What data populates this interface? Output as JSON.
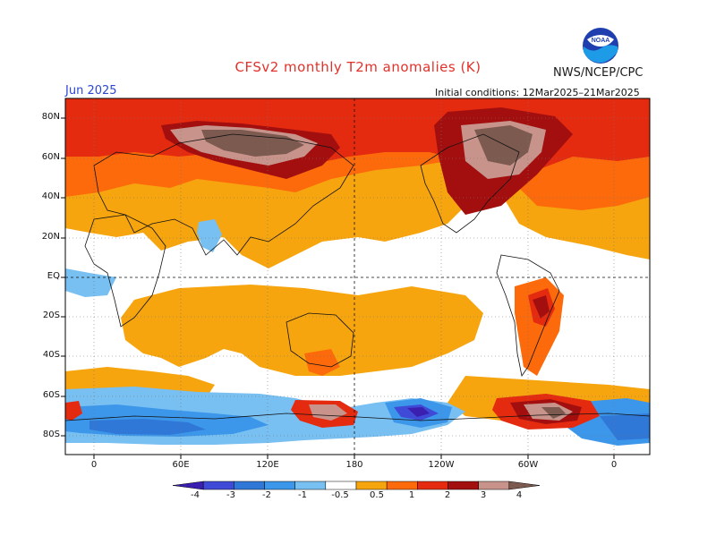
{
  "header": {
    "title": "CFSv2 monthly T2m anomalies (K)",
    "agency": "NWS/NCEP/CPC",
    "month": "Jun 2025",
    "initial_conditions": "Initial conditions: 12Mar2025–21Mar2025"
  },
  "logo_icon": "noaa-logo-icon",
  "axes": {
    "lat_labels": [
      "80N",
      "60N",
      "40N",
      "20N",
      "EQ",
      "20S",
      "40S",
      "60S",
      "80S"
    ],
    "lon_labels": [
      "0",
      "60E",
      "120E",
      "180",
      "120W",
      "60W",
      "0"
    ]
  },
  "colorbar": {
    "labels": [
      "-4",
      "-3",
      "-2",
      "-1",
      "-0.5",
      "0.5",
      "1",
      "2",
      "3",
      "4"
    ],
    "colors": [
      "#3a1fb0",
      "#3f4bd6",
      "#2f78d8",
      "#3c97ea",
      "#78bff2",
      "#ffffff",
      "#f6a50f",
      "#fc6a0c",
      "#e42b10",
      "#a30f0f",
      "#c7938a",
      "#7c5a50"
    ]
  },
  "colors": {
    "title": "#e0322a",
    "month": "#2b46d6",
    "ocean_neutral": "#ffffff"
  }
}
